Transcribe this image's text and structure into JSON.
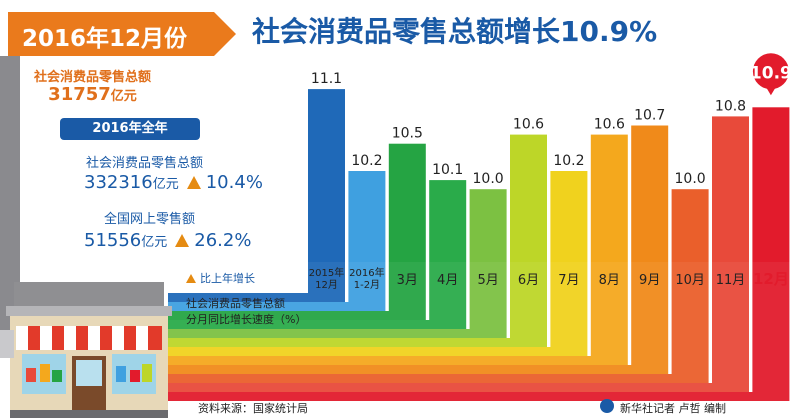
{
  "banner": {
    "month_label": "2016年12月份",
    "headline": "社会消费品零售总额增长10.9%"
  },
  "december": {
    "title": "社会消费品零售总额",
    "value": "31757",
    "unit": "亿元"
  },
  "full_year": {
    "badge": "2016年全年",
    "retail_title": "社会消费品零售总额",
    "retail_value": "332316",
    "retail_unit": "亿元",
    "retail_growth": "10.4%",
    "online_title": "全国网上零售额",
    "online_value": "51556",
    "online_unit": "亿元",
    "online_growth": "26.2%"
  },
  "legend": {
    "growth_marker": "比上年增长"
  },
  "axis_caption": {
    "line1": "社会消费品零售总额",
    "line2": "分月同比增长速度（%）"
  },
  "footer": {
    "source": "资料来源：国家统计局",
    "credit": "新华社记者 卢哲 编制"
  },
  "colors": {
    "brand_blue": "#1a5aa6",
    "banner_orange": "#ea7a1c",
    "highlight_red": "#e21b2c"
  },
  "chart_data": {
    "type": "bar",
    "title": "社会消费品零售总额分月同比增长速度（%）",
    "categories": [
      "2015年12月",
      "2016年1-2月",
      "3月",
      "4月",
      "5月",
      "6月",
      "7月",
      "8月",
      "9月",
      "10月",
      "11月",
      "12月"
    ],
    "values": [
      11.1,
      10.2,
      10.5,
      10.1,
      10.0,
      10.6,
      10.2,
      10.6,
      10.7,
      10.0,
      10.8,
      10.9
    ],
    "value_labels": [
      "11.1",
      "10.2",
      "10.5",
      "10.1",
      "10.0",
      "10.6",
      "10.2",
      "10.6",
      "10.7",
      "10.0",
      "10.8",
      "10.9"
    ],
    "bar_colors": [
      "#1f69b8",
      "#3fa0e0",
      "#25a443",
      "#2aab4a",
      "#7cc142",
      "#bdd628",
      "#f0d21e",
      "#f4a81d",
      "#f08a1a",
      "#ea5f2b",
      "#e84a3a",
      "#e21b2c"
    ],
    "highlight_index": 11,
    "ylim": [
      9.2,
      11.2
    ]
  }
}
